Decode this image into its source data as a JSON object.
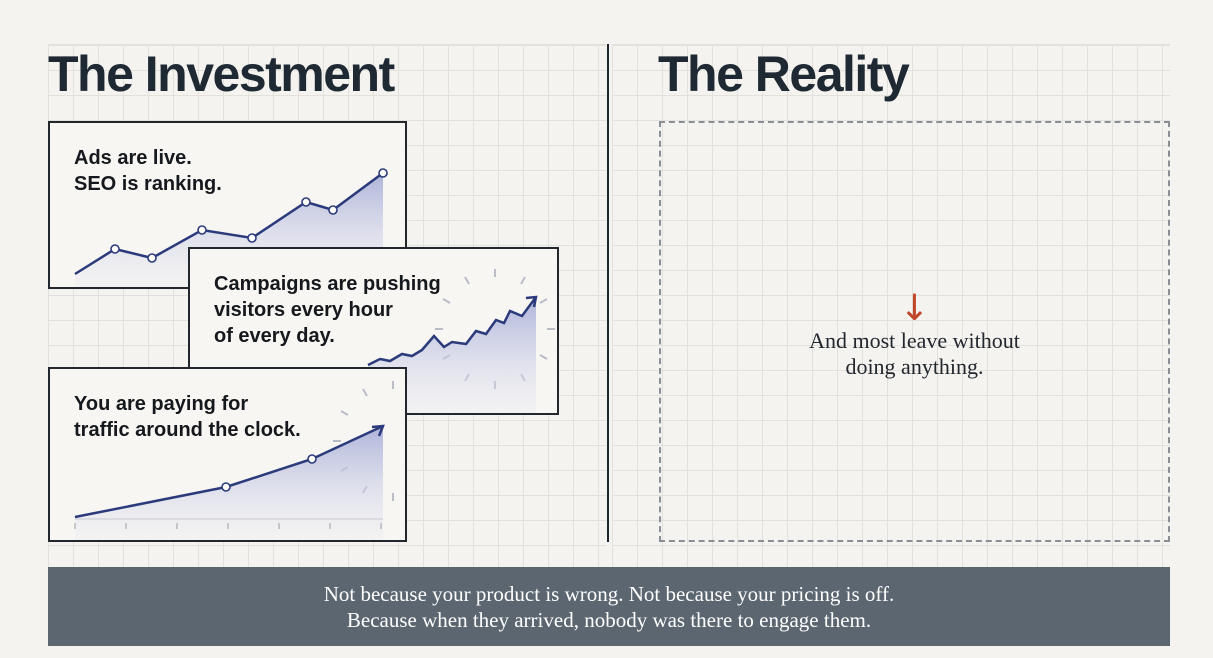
{
  "left": {
    "title": "The Investment",
    "cards": [
      {
        "text": "Ads are live.\nSEO is ranking."
      },
      {
        "text": "Campaigns are pushing\nvisitors every hour\nof every day."
      },
      {
        "text": "You are paying for\ntraffic around the clock."
      }
    ]
  },
  "right": {
    "title": "The Reality",
    "arrow": "↓",
    "text": "And most leave without\ndoing anything."
  },
  "footer": {
    "text": "Not because your product is wrong. Not because your pricing is off.\nBecause when they arrived, nobody was there to engage them."
  },
  "colors": {
    "line": "#2b3a7a",
    "fill": "#c9cde6",
    "accent_arrow": "#c0462a",
    "banner": "#5b6670"
  }
}
